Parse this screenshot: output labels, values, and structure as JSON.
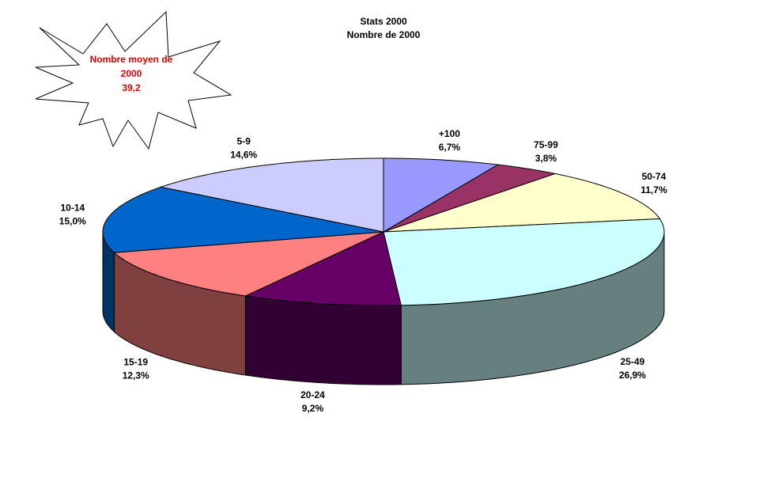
{
  "chart_data": {
    "type": "pie3d",
    "title": "Stats 2000",
    "subtitle": "Nombre de 2000",
    "categories": [
      "+100",
      "75-99",
      "50-74",
      "25-49",
      "20-24",
      "15-19",
      "10-14",
      "5-9"
    ],
    "values": [
      6.7,
      3.8,
      11.7,
      26.9,
      9.2,
      12.3,
      15.0,
      14.6
    ],
    "value_labels": [
      "6,7%",
      "3,8%",
      "11,7%",
      "26,9%",
      "9,2%",
      "12,3%",
      "15,0%",
      "14,6%"
    ],
    "colors": [
      "#9999ff",
      "#993366",
      "#ffffcc",
      "#ccffff",
      "#660066",
      "#ff8080",
      "#0066cc",
      "#ccccff"
    ],
    "annotation": [
      "Nombre moyen de",
      "2000",
      "39,2"
    ]
  }
}
